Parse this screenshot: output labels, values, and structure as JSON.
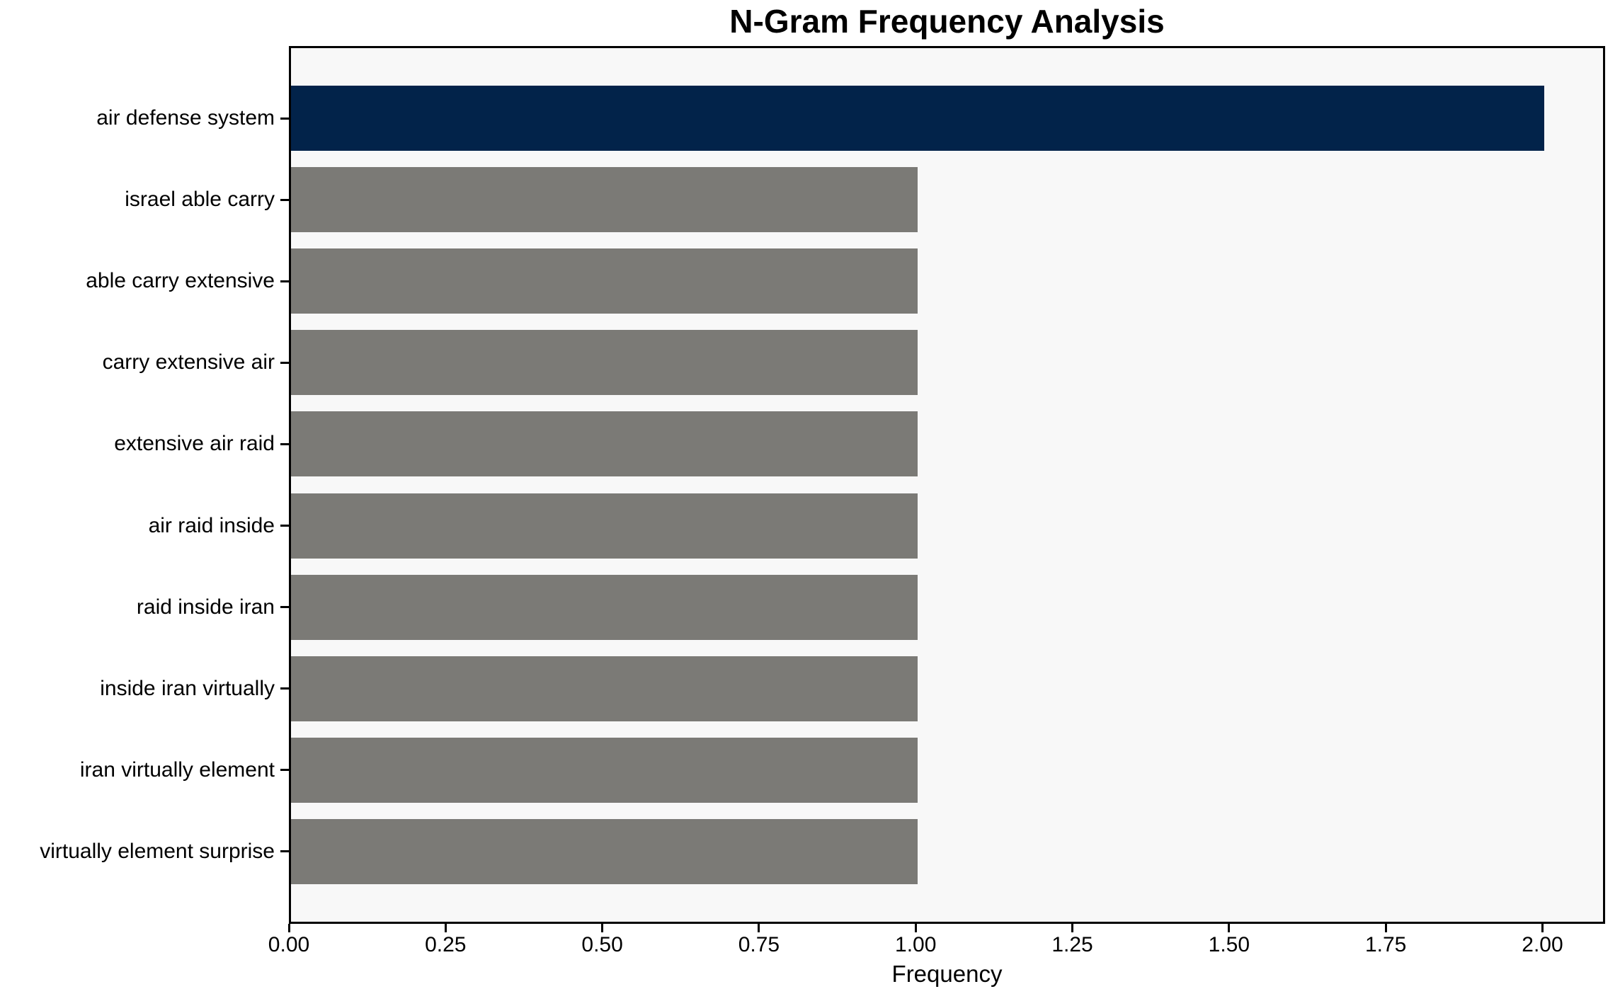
{
  "chart_data": {
    "type": "bar",
    "orientation": "horizontal",
    "title": "N-Gram Frequency Analysis",
    "xlabel": "Frequency",
    "ylabel": "",
    "categories": [
      "air defense system",
      "israel able carry",
      "able carry extensive",
      "carry extensive air",
      "extensive air raid",
      "air raid inside",
      "raid inside iran",
      "inside iran virtually",
      "iran virtually element",
      "virtually element surprise"
    ],
    "values": [
      2,
      1,
      1,
      1,
      1,
      1,
      1,
      1,
      1,
      1
    ],
    "xlim": [
      0,
      2.1
    ],
    "x_ticks": [
      {
        "value": 0,
        "label": "0.00"
      },
      {
        "value": 0.25,
        "label": "0.25"
      },
      {
        "value": 0.5,
        "label": "0.50"
      },
      {
        "value": 0.75,
        "label": "0.75"
      },
      {
        "value": 1,
        "label": "1.00"
      },
      {
        "value": 1.25,
        "label": "1.25"
      },
      {
        "value": 1.5,
        "label": "1.50"
      },
      {
        "value": 1.75,
        "label": "1.75"
      },
      {
        "value": 2,
        "label": "2.00"
      }
    ],
    "grid": false,
    "legend": "none",
    "colors": {
      "bar_colors": [
        "#02234a",
        "#7b7a76",
        "#7b7a76",
        "#7b7a76",
        "#7b7a76",
        "#7b7a76",
        "#7b7a76",
        "#7b7a76",
        "#7b7a76",
        "#7b7a76"
      ],
      "highlight_bar": "#02234a",
      "default_bar": "#7b7a76",
      "plot_background": "#f8f8f8",
      "figure_background": "#ffffff",
      "spine": "#000000",
      "text": "#000000"
    }
  }
}
